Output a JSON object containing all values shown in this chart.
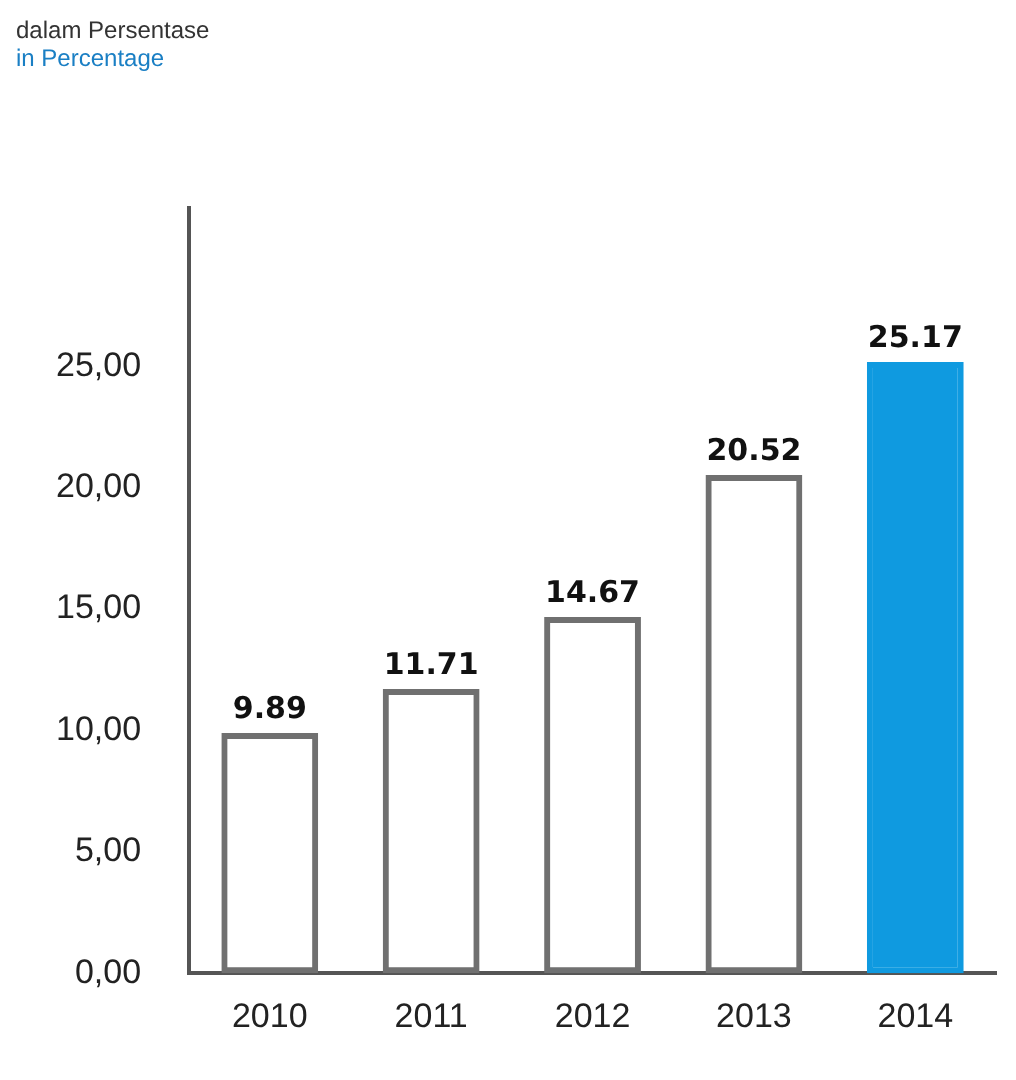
{
  "chart_data": {
    "type": "bar",
    "title": "dalam Persentase",
    "subtitle": "in Percentage",
    "categories": [
      "2010",
      "2011",
      "2012",
      "2013",
      "2014"
    ],
    "values": [
      9.89,
      11.71,
      14.67,
      20.52,
      25.17
    ],
    "colors": [
      "#707070",
      "#707070",
      "#707070",
      "#707070",
      "#0f9ae0"
    ],
    "ylim": [
      0,
      31.5
    ],
    "yticks": [
      {
        "value": 0,
        "label": "0,00"
      },
      {
        "value": 5,
        "label": "5,00"
      },
      {
        "value": 10,
        "label": "10,00"
      },
      {
        "value": 15,
        "label": "15,00"
      },
      {
        "value": 20,
        "label": "20,00"
      },
      {
        "value": 25,
        "label": "25,00"
      }
    ],
    "grid": false,
    "legend": false,
    "data_labels": true
  }
}
